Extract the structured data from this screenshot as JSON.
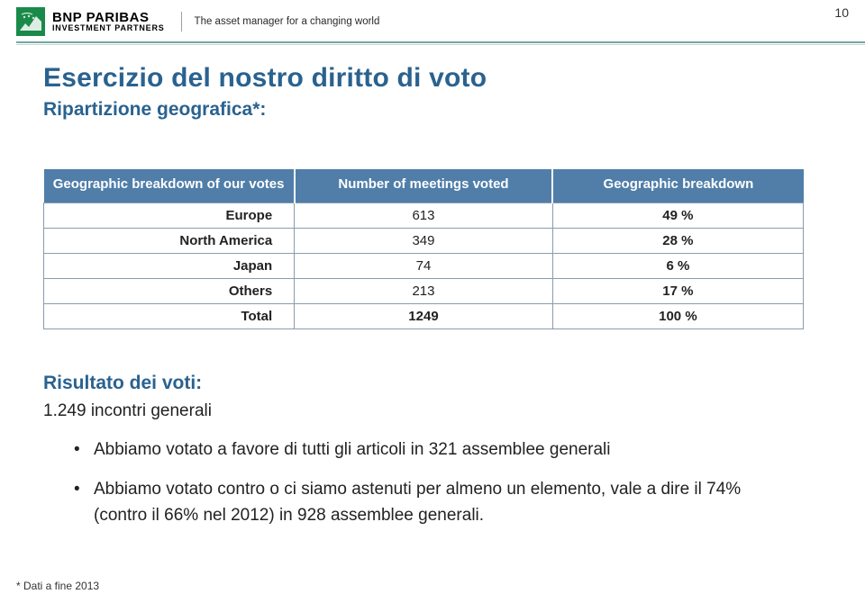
{
  "header": {
    "brand_main": "BNP PARIBAS",
    "brand_sub": "INVESTMENT PARTNERS",
    "tagline": "The asset manager for a changing world",
    "page_number": "10",
    "logo_bg_color": "#1a8a4a",
    "accent_rule_color": "#6fa9a1"
  },
  "title": "Esercizio del nostro diritto di voto",
  "subtitle": "Ripartizione geografica*:",
  "table": {
    "header_bg": "#507ea9",
    "border_color": "#8a9bb0",
    "columns": [
      "Geographic breakdown of our votes",
      "Number of meetings voted",
      "Geographic breakdown"
    ],
    "rows": [
      {
        "region": "Europe",
        "meetings": "613",
        "pct": "49 %",
        "is_total": false
      },
      {
        "region": "North America",
        "meetings": "349",
        "pct": "28 %",
        "is_total": false
      },
      {
        "region": "Japan",
        "meetings": "74",
        "pct": "6 %",
        "is_total": false
      },
      {
        "region": "Others",
        "meetings": "213",
        "pct": "17 %",
        "is_total": false
      },
      {
        "region": "Total",
        "meetings": "1249",
        "pct": "100 %",
        "is_total": true
      }
    ]
  },
  "results": {
    "heading": "Risultato dei voti:",
    "line1": "1.249 incontri generali",
    "bullets": [
      "Abbiamo votato a favore di tutti gli articoli in 321 assemblee generali",
      "Abbiamo votato contro o ci siamo astenuti per almeno un elemento, vale a dire il 74% (contro il 66% nel 2012) in 928 assemblee generali."
    ]
  },
  "footnote": "* Dati a fine 2013",
  "colors": {
    "title_color": "#2a628f",
    "text_color": "#222222",
    "background": "#ffffff"
  }
}
